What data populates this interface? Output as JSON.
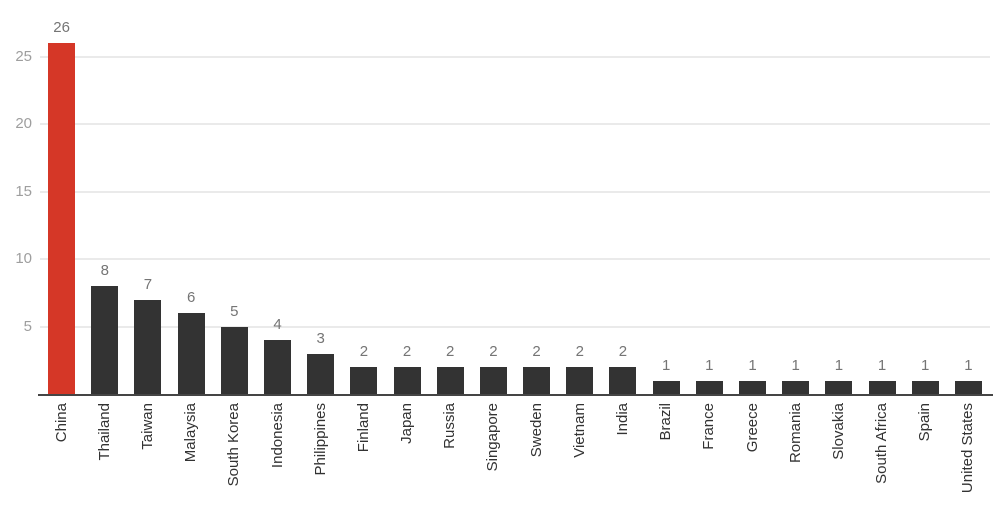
{
  "chart_data": {
    "type": "bar",
    "title": "",
    "xlabel": "",
    "ylabel": "",
    "categories": [
      "China",
      "Thailand",
      "Taiwan",
      "Malaysia",
      "South Korea",
      "Indonesia",
      "Philippines",
      "Finland",
      "Japan",
      "Russia",
      "Singapore",
      "Sweden",
      "Vietnam",
      "India",
      "Brazil",
      "France",
      "Greece",
      "Romania",
      "Slovakia",
      "South Africa",
      "Spain",
      "United States"
    ],
    "values": [
      26,
      8,
      7,
      6,
      5,
      4,
      3,
      2,
      2,
      2,
      2,
      2,
      2,
      2,
      1,
      1,
      1,
      1,
      1,
      1,
      1,
      1
    ],
    "value_labels_shown": true,
    "highlight_category": "China",
    "y_ticks": [
      5,
      10,
      15,
      20,
      25
    ],
    "ylim": [
      0,
      27
    ],
    "grid": "horizontal",
    "legend_position": "none",
    "colors": {
      "highlight_bar": "#d53727",
      "default_bar": "#333333",
      "gridline": "#eaeaea",
      "axis_line": "#454545",
      "y_tick_label": "#9e9e9e",
      "value_label": "#757575",
      "x_tick_label": "#333333",
      "background": "#ffffff"
    }
  }
}
